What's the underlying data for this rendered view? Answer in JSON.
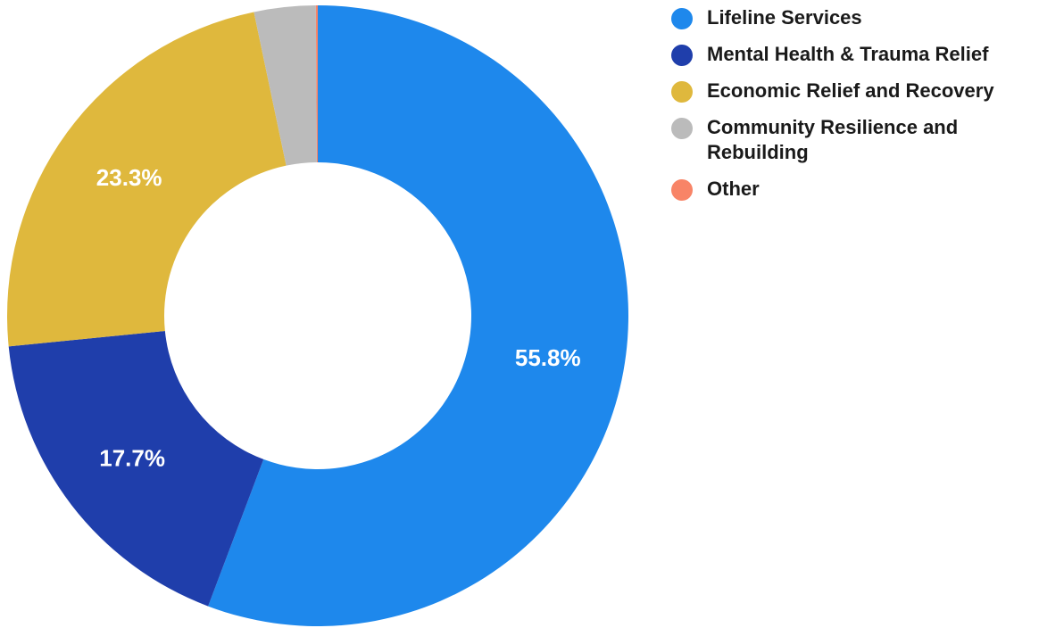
{
  "chart_data": {
    "type": "pie",
    "donut": true,
    "legend_position": "right",
    "categories": [
      "Lifeline Services",
      "Mental Health & Trauma Relief",
      "Economic Relief and Recovery",
      "Community Resilience and Rebuilding",
      "Other"
    ],
    "values": [
      55.8,
      17.7,
      23.3,
      3.2,
      0.1
    ],
    "colors": [
      "#1e88ec",
      "#1f3eab",
      "#dfb83d",
      "#bbbbbb",
      "#f88467"
    ],
    "data_labels": [
      "55.8%",
      "17.7%",
      "23.3%",
      "",
      ""
    ],
    "legend": [
      {
        "label": "Lifeline Services",
        "color": "#1e88ec"
      },
      {
        "label": "Mental Health & Trauma Relief",
        "color": "#1f3eab"
      },
      {
        "label": "Economic Relief and Recovery",
        "color": "#dfb83d"
      },
      {
        "label": "Community Resilience and Rebuilding",
        "color": "#bbbbbb"
      },
      {
        "label": "Other",
        "color": "#f88467"
      }
    ]
  }
}
